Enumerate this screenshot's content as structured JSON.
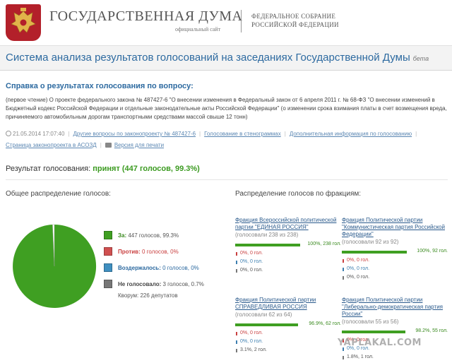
{
  "header": {
    "title": "ГОСУДАРСТВЕННАЯ ДУМА",
    "subtitle": "официальный сайт",
    "federal_line1": "ФЕДЕРАЛЬНОЕ СОБРАНИЕ",
    "federal_line2": "РОССИЙСКОЙ ФЕДЕРАЦИИ",
    "emblem": "coat-of-arms",
    "emblem_color": "#b3202a"
  },
  "system": {
    "title": "Система анализа результатов голосований на заседаниях Государственной Думы",
    "beta": "бета"
  },
  "question": {
    "heading": "Справка о результатах голосования по вопросу:",
    "text": "(первое чтение) О проекте федерального закона № 487427-6 \"О внесении изменения в Федеральный закон от 6 апреля 2011 г. № 68-ФЗ \"О внесении изменений в Бюджетный кодекс Российской Федерации и отдельные законодательные акты Российской Федерации\" (о изменении срока взимания платы в счет возмещения вреда, причиняемого автомобильным дорогам транспортными средствами массой свыше 12 тонн)"
  },
  "links": {
    "datetime": "21.05.2014 17:07:40",
    "other_questions": "Другие вопросы по законопроекту № 487427-6",
    "transcript": "Голосование в стенограммах",
    "extra_info": "Дополнительная информация по голосованию",
    "bill_page": "Страница законопроекта в АСОЗД",
    "print_version": "Версия для печати"
  },
  "result": {
    "label": "Результат голосования:",
    "value": "принят (447 голосов, 99.3%)",
    "color": "#3a9a1f"
  },
  "overall": {
    "heading": "Общее распределение голосов:",
    "legend": [
      {
        "label": "За:",
        "value": "447 голосов, 99.3%",
        "color": "#3f9f22"
      },
      {
        "label": "Против:",
        "value": "0 голосов, 0%",
        "color": "#d05050"
      },
      {
        "label": "Воздержалось:",
        "value": "0 голосов, 0%",
        "color": "#3f8fc0"
      },
      {
        "label": "Не голосовало:",
        "value": "3 голосов, 0.7%",
        "color": "#777777"
      }
    ],
    "pie": {
      "for": 99.3,
      "against": 0,
      "abstained": 0,
      "not_voted": 0.7
    },
    "quorum": "Кворум: 226 депутатов"
  },
  "factions": {
    "heading": "Распределение голосов по фракциям:",
    "items": [
      {
        "name": "Фракция Всероссийской политической партии \"ЕДИНАЯ РОССИЯ\"",
        "voted": "(голосовали 238 из 238)",
        "for_pct": 100,
        "for_label": "100%, 238 гол.",
        "stats": [
          {
            "kind": "red",
            "text": "0%, 0 гол."
          },
          {
            "kind": "blue",
            "text": "0%, 0 гол."
          },
          {
            "kind": "grey",
            "text": "0%, 0 гол."
          }
        ]
      },
      {
        "name": "Фракция Политической партии \"Коммунистическая партия Российской Федерации\"",
        "voted": "(голосовали 92 из 92)",
        "for_pct": 100,
        "for_label": "100%, 92 гол.",
        "stats": [
          {
            "kind": "red",
            "text": "0%, 0 гол."
          },
          {
            "kind": "blue",
            "text": "0%, 0 гол."
          },
          {
            "kind": "grey",
            "text": "0%, 0 гол."
          }
        ]
      },
      {
        "name": "Фракция Политической партии СПРАВЕДЛИВАЯ РОССИЯ",
        "voted": "(голосовали 62 из 64)",
        "for_pct": 96.9,
        "for_label": "96.9%, 62 гол.",
        "stats": [
          {
            "kind": "red",
            "text": "0%, 0 гол."
          },
          {
            "kind": "blue",
            "text": "0%, 0 гол."
          },
          {
            "kind": "grey",
            "text": "3.1%, 2 гол."
          }
        ]
      },
      {
        "name": "Фракция Политической партии \"Либерально-демократическая партия России\"",
        "voted": "(голосовали 55 из 56)",
        "for_pct": 98.2,
        "for_label": "98.2%, 55 гол.",
        "stats": [
          {
            "kind": "red",
            "text": "0%, 0 гол."
          },
          {
            "kind": "blue",
            "text": "0%, 0 гол."
          },
          {
            "kind": "grey",
            "text": "1.8%, 1 гол."
          }
        ]
      }
    ]
  },
  "watermark": "YAPLAKAL.COM"
}
